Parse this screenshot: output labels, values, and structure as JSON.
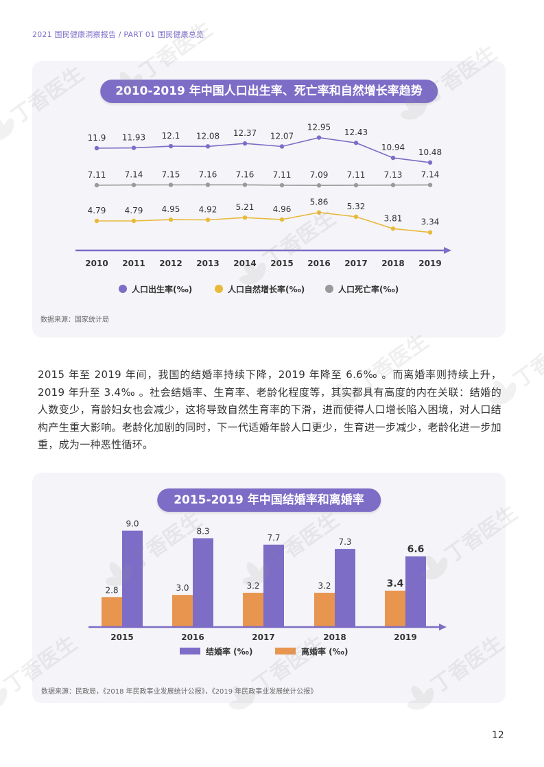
{
  "header": {
    "text": "2021 国民健康洞察报告 / PART 01 国民健康总览"
  },
  "chart1": {
    "title": "2010-2019 年中国人口出生率、死亡率和自然增长率趋势",
    "source": "数据来源：国家统计局"
  },
  "paragraph": "2015 年至 2019 年间，我国的结婚率持续下降，2019 年降至 6.6‰ 。而离婚率则持续上升，2019 年升至 3.4‰ 。社会结婚率、生育率、老龄化程度等，其实都具有高度的内在关联：结婚的人数变少，育龄妇女也会减少，这将导致自然生育率的下滑，进而使得人口增长陷入困境，对人口结构产生重大影响。老龄化加剧的同时，下一代适婚年龄人口更少，生育进一步减少，老龄化进一步加重，成为一种恶性循环。",
  "chart2": {
    "title": "2015-2019 年中国结婚率和离婚率",
    "source": "数据来源：民政局，《2018 年民政事业发展统计公报》，《2019 年民政事业发展统计公报》"
  },
  "page_number": "12",
  "watermark": "丁香医生",
  "chart_data": [
    {
      "type": "line",
      "title": "2010-2019 年中国人口出生率、死亡率和自然增长率趋势",
      "x": [
        "2010",
        "2011",
        "2012",
        "2013",
        "2014",
        "2015",
        "2016",
        "2017",
        "2018",
        "2019"
      ],
      "series": [
        {
          "name": "人口出生率(‰)",
          "color": "#7d6dc7",
          "values": [
            11.9,
            11.93,
            12.1,
            12.08,
            12.37,
            12.07,
            12.95,
            12.43,
            10.94,
            10.48
          ],
          "labels": [
            "11.9",
            "11.93",
            "12.1",
            "12.08",
            "12.37",
            "12.07",
            "12.95",
            "12.43",
            "10.94",
            "10.48"
          ]
        },
        {
          "name": "人口死亡率(‰)",
          "color": "#9a9a9a",
          "values": [
            7.11,
            7.14,
            7.15,
            7.16,
            7.16,
            7.11,
            7.09,
            7.11,
            7.13,
            7.14
          ],
          "labels": [
            "7.11",
            "7.14",
            "7.15",
            "7.16",
            "7.16",
            "7.11",
            "7.09",
            "7.11",
            "7.13",
            "7.14"
          ]
        },
        {
          "name": "人口自然增长率(‰)",
          "color": "#e8b93a",
          "values": [
            4.79,
            4.79,
            4.95,
            4.92,
            5.21,
            4.96,
            5.86,
            5.32,
            3.81,
            3.34
          ],
          "labels": [
            "4.79",
            "4.79",
            "4.95",
            "4.92",
            "5.21",
            "4.96",
            "5.86",
            "5.32",
            "3.81",
            "3.34"
          ]
        }
      ],
      "legend": [
        "人口出生率(‰)",
        "人口自然增长率(‰)",
        "人口死亡率(‰)"
      ],
      "legend_colors": [
        "#7d6dc7",
        "#e8b93a",
        "#9a9a9a"
      ]
    },
    {
      "type": "bar",
      "title": "2015-2019 年中国结婚率和离婚率",
      "categories": [
        "2015",
        "2016",
        "2017",
        "2018",
        "2019"
      ],
      "series": [
        {
          "name": "离婚率 (‰)",
          "color": "#e8954f",
          "values": [
            2.8,
            3.0,
            3.2,
            3.2,
            3.4
          ],
          "labels": [
            "2.8",
            "3.0",
            "3.2",
            "3.2",
            "3.4"
          ]
        },
        {
          "name": "结婚率 (‰)",
          "color": "#7d6dc7",
          "values": [
            9.0,
            8.3,
            7.7,
            7.3,
            6.6
          ],
          "labels": [
            "9.0",
            "8.3",
            "7.7",
            "7.3",
            "6.6"
          ]
        }
      ],
      "legend": [
        "结婚率 (‰)",
        "离婚率 (‰)"
      ],
      "legend_colors": [
        "#7d6dc7",
        "#e8954f"
      ]
    }
  ]
}
